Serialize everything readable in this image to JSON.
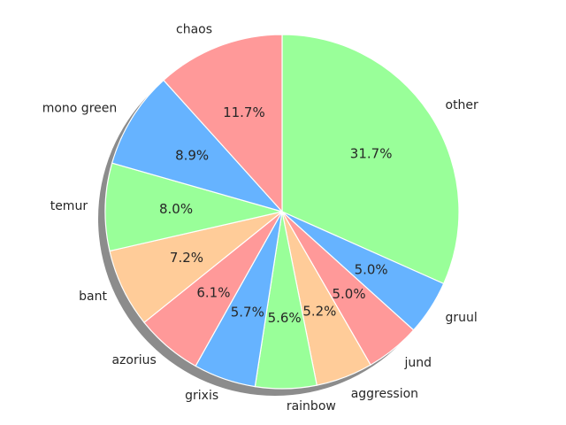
{
  "chart_data": {
    "type": "pie",
    "title": "",
    "start_angle_deg": 90,
    "direction": "clockwise",
    "shadow": true,
    "slices": [
      {
        "label": "other",
        "value": 31.7,
        "pct_text": "31.7%",
        "color": "#99ff99"
      },
      {
        "label": "gruul",
        "value": 5.0,
        "pct_text": "5.0%",
        "color": "#66b3ff"
      },
      {
        "label": "jund",
        "value": 5.0,
        "pct_text": "5.0%",
        "color": "#ff9999"
      },
      {
        "label": "aggression",
        "value": 5.2,
        "pct_text": "5.2%",
        "color": "#ffcc99"
      },
      {
        "label": "rainbow",
        "value": 5.6,
        "pct_text": "5.6%",
        "color": "#99ff99"
      },
      {
        "label": "grixis",
        "value": 5.7,
        "pct_text": "5.7%",
        "color": "#66b3ff"
      },
      {
        "label": "azorius",
        "value": 6.1,
        "pct_text": "6.1%",
        "color": "#ff9999"
      },
      {
        "label": "bant",
        "value": 7.2,
        "pct_text": "7.2%",
        "color": "#ffcc99"
      },
      {
        "label": "temur",
        "value": 8.0,
        "pct_text": "8.0%",
        "color": "#99ff99"
      },
      {
        "label": "mono green",
        "value": 8.9,
        "pct_text": "8.9%",
        "color": "#66b3ff"
      },
      {
        "label": "chaos",
        "value": 11.7,
        "pct_text": "11.7%",
        "color": "#ff9999"
      }
    ]
  }
}
